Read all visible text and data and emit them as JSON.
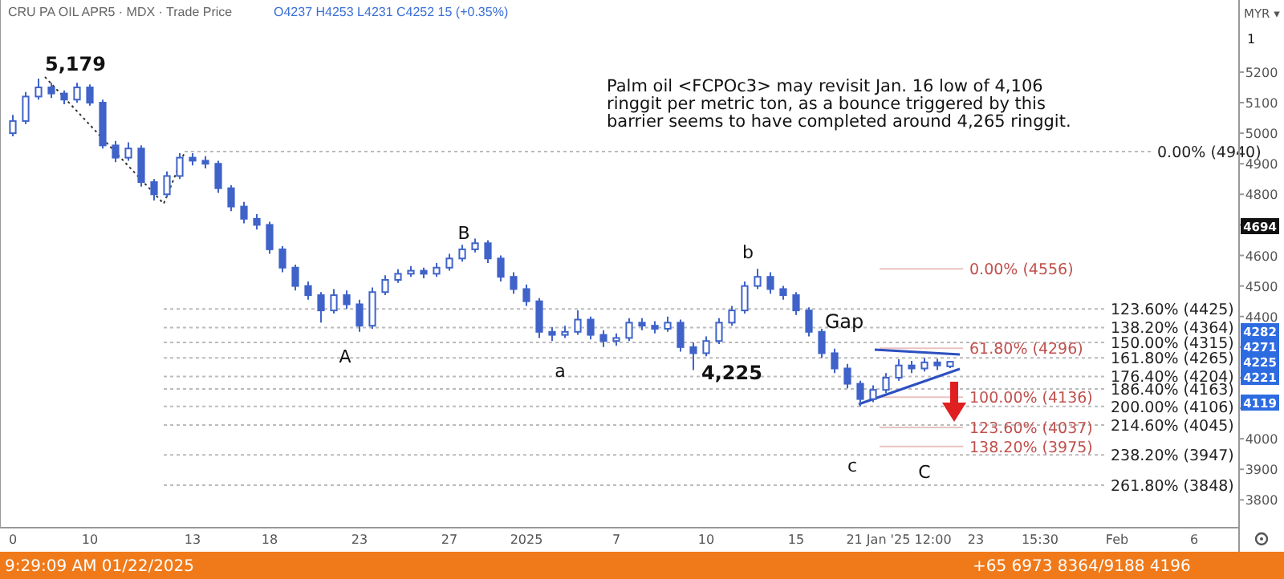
{
  "chart_data": {
    "type": "candlestick",
    "title": "CRU PA OIL APR5 · MDX · Trade Price",
    "subtitle": "O4237 H4253 L4231 C4252 15 (+0.35%)",
    "ylabel": "MYR ▾",
    "color": "#3f63c9",
    "categories": [
      "0",
      null,
      null,
      null,
      null,
      null,
      "10",
      null,
      null,
      null,
      null,
      null,
      null,
      null,
      "13",
      null,
      null,
      null,
      null,
      null,
      "18",
      null,
      null,
      null,
      null,
      null,
      null,
      "23",
      null,
      null,
      null,
      null,
      null,
      null,
      "27",
      null,
      null,
      null,
      null,
      null,
      "2025",
      null,
      null,
      null,
      null,
      null,
      null,
      "7",
      null,
      null,
      null,
      null,
      null,
      null,
      "10",
      null,
      null,
      null,
      null,
      null,
      null,
      "15",
      null,
      null,
      null,
      null,
      null,
      null,
      null,
      "21 Jan '25  12:00",
      null,
      null,
      null,
      null,
      null,
      "23",
      null,
      null,
      null,
      null,
      "15:30",
      null,
      null,
      null,
      null,
      null,
      "Feb",
      null,
      null,
      null,
      null,
      null,
      "6",
      null,
      null,
      null
    ],
    "ohlc": [
      [
        5000,
        5060,
        4990,
        5040
      ],
      [
        5040,
        5135,
        5030,
        5120
      ],
      [
        5120,
        5179,
        5110,
        5150
      ],
      [
        5150,
        5165,
        5115,
        5130
      ],
      [
        5130,
        5140,
        5095,
        5110
      ],
      [
        5110,
        5165,
        5100,
        5150
      ],
      [
        5150,
        5160,
        5090,
        5100
      ],
      [
        5100,
        5110,
        4950,
        4960
      ],
      [
        4960,
        4975,
        4905,
        4920
      ],
      [
        4920,
        4970,
        4910,
        4950
      ],
      [
        4950,
        4960,
        4825,
        4840
      ],
      [
        4840,
        4850,
        4780,
        4800
      ],
      [
        4800,
        4875,
        4790,
        4860
      ],
      [
        4860,
        4935,
        4850,
        4920
      ],
      [
        4920,
        4935,
        4895,
        4910
      ],
      [
        4910,
        4925,
        4885,
        4900
      ],
      [
        4900,
        4910,
        4805,
        4820
      ],
      [
        4820,
        4830,
        4745,
        4760
      ],
      [
        4760,
        4775,
        4705,
        4720
      ],
      [
        4720,
        4735,
        4685,
        4700
      ],
      [
        4700,
        4710,
        4605,
        4620
      ],
      [
        4620,
        4630,
        4545,
        4560
      ],
      [
        4560,
        4570,
        4485,
        4500
      ],
      [
        4500,
        4515,
        4455,
        4470
      ],
      [
        4470,
        4480,
        4380,
        4420
      ],
      [
        4420,
        4490,
        4410,
        4470
      ],
      [
        4470,
        4485,
        4425,
        4440
      ],
      [
        4440,
        4455,
        4350,
        4370
      ],
      [
        4370,
        4495,
        4360,
        4480
      ],
      [
        4480,
        4535,
        4470,
        4520
      ],
      [
        4520,
        4555,
        4510,
        4540
      ],
      [
        4540,
        4565,
        4530,
        4550
      ],
      [
        4550,
        4560,
        4525,
        4540
      ],
      [
        4540,
        4575,
        4530,
        4560
      ],
      [
        4560,
        4605,
        4550,
        4590
      ],
      [
        4590,
        4635,
        4580,
        4620
      ],
      [
        4620,
        4655,
        4610,
        4640
      ],
      [
        4640,
        4650,
        4575,
        4590
      ],
      [
        4590,
        4600,
        4515,
        4530
      ],
      [
        4530,
        4545,
        4475,
        4490
      ],
      [
        4490,
        4505,
        4435,
        4450
      ],
      [
        4450,
        4460,
        4330,
        4350
      ],
      [
        4350,
        4365,
        4320,
        4340
      ],
      [
        4340,
        4370,
        4330,
        4350
      ],
      [
        4350,
        4420,
        4340,
        4390
      ],
      [
        4390,
        4400,
        4325,
        4340
      ],
      [
        4340,
        4355,
        4300,
        4320
      ],
      [
        4320,
        4345,
        4305,
        4330
      ],
      [
        4330,
        4395,
        4320,
        4380
      ],
      [
        4380,
        4395,
        4355,
        4370
      ],
      [
        4370,
        4385,
        4345,
        4360
      ],
      [
        4360,
        4400,
        4350,
        4380
      ],
      [
        4380,
        4390,
        4285,
        4300
      ],
      [
        4300,
        4315,
        4225,
        4280
      ],
      [
        4280,
        4335,
        4270,
        4320
      ],
      [
        4320,
        4395,
        4310,
        4380
      ],
      [
        4380,
        4435,
        4370,
        4420
      ],
      [
        4420,
        4515,
        4410,
        4500
      ],
      [
        4500,
        4556,
        4490,
        4530
      ],
      [
        4530,
        4545,
        4475,
        4490
      ],
      [
        4490,
        4500,
        4455,
        4470
      ],
      [
        4470,
        4480,
        4405,
        4420
      ],
      [
        4420,
        4430,
        4335,
        4350
      ],
      [
        4350,
        4360,
        4265,
        4280
      ],
      [
        4280,
        4295,
        4215,
        4230
      ],
      [
        4230,
        4245,
        4165,
        4180
      ],
      [
        4180,
        4190,
        4106,
        4130
      ],
      [
        4130,
        4175,
        4120,
        4160
      ],
      [
        4160,
        4215,
        4150,
        4200
      ],
      [
        4200,
        4260,
        4190,
        4240
      ],
      [
        4240,
        4255,
        4215,
        4230
      ],
      [
        4230,
        4265,
        4220,
        4250
      ],
      [
        4250,
        4262,
        4225,
        4240
      ],
      [
        4237,
        4253,
        4231,
        4252
      ],
      null,
      null,
      null,
      null,
      null,
      null,
      null,
      null,
      null,
      null,
      null,
      null,
      null,
      null,
      null,
      null,
      null,
      null,
      null,
      null,
      null,
      null
    ],
    "ylim": [
      3709,
      5436
    ],
    "yticks": [
      3800,
      3900,
      4000,
      {
        "value": 4100,
        "label": null
      },
      {
        "value": 4200,
        "label": null
      },
      {
        "value": 4300,
        "label": null
      },
      4400,
      4500,
      4600,
      {
        "value": 4700,
        "label": null
      },
      4800,
      4900,
      5000,
      5100,
      5200
    ],
    "grid": false,
    "ref_lines": [
      {
        "axis": "y",
        "value": 4940,
        "label": "0.00% (4940)",
        "line_style": "dashed"
      },
      {
        "axis": "y",
        "value": 4425,
        "label": "123.60% (4425)",
        "line_style": "dashed"
      },
      {
        "axis": "y",
        "value": 4364,
        "label": "138.20% (4364)",
        "line_style": "dashed"
      },
      {
        "axis": "y",
        "value": 4315,
        "label": "150.00% (4315)",
        "line_style": "dashed"
      },
      {
        "axis": "y",
        "value": 4265,
        "label": "161.80% (4265)",
        "line_style": "dashed"
      },
      {
        "axis": "y",
        "value": 4204,
        "label": "176.40% (4204)",
        "line_style": "dashed"
      },
      {
        "axis": "y",
        "value": 4163,
        "label": "186.40% (4163)",
        "line_style": "dashed"
      },
      {
        "axis": "y",
        "value": 4106,
        "label": "200.00% (4106)",
        "line_style": "dashed"
      },
      {
        "axis": "y",
        "value": 4045,
        "label": "214.60% (4045)",
        "line_style": "dashed"
      },
      {
        "axis": "y",
        "value": 3947,
        "label": "238.20% (3947)",
        "line_style": "dashed"
      },
      {
        "axis": "y",
        "value": 3848,
        "label": "261.80% (3848)",
        "line_style": "dashed"
      },
      {
        "axis": "y",
        "value": 4556,
        "label": "0.00% (4556)",
        "line_style": "solid",
        "color": "#c0504d"
      },
      {
        "axis": "y",
        "value": 4296,
        "label": "61.80% (4296)",
        "line_style": "solid",
        "color": "#c0504d"
      },
      {
        "axis": "y",
        "value": 4136,
        "label": "100.00% (4136)",
        "line_style": "solid",
        "color": "#c0504d"
      },
      {
        "axis": "y",
        "value": 4037,
        "label": "123.60% (4037)",
        "line_style": "solid",
        "color": "#c0504d"
      },
      {
        "axis": "y",
        "value": 3975,
        "label": "138.20% (3975)",
        "line_style": "solid",
        "color": "#c0504d"
      }
    ],
    "annotations": [
      {
        "text": "5,179",
        "y": 5179
      },
      "A",
      "B",
      "a",
      {
        "text": "4,225",
        "y": 4225
      },
      "b",
      {
        "text": "Gap",
        "y": 4400
      },
      "c",
      "C",
      "Palm oil <FCPOc3> may revisit Jan. 16 low of 4,106 ringgit per metric ton, as a bounce triggered by this barrier seems to have completed around 4,265 ringgit.",
      "9:29:09 AM 01/22/2025",
      "+65 6973 8364/9188 4196",
      "1",
      "4694",
      "4282",
      "4271",
      "4225",
      "4221",
      "4119"
    ]
  }
}
